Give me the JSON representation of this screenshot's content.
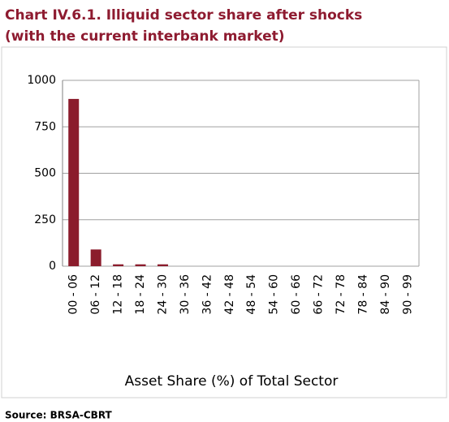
{
  "chart_data": {
    "type": "bar",
    "title": "Chart IV.6.1. Illiquid sector share after shocks",
    "subtitle": "(with the current interbank market)",
    "categories": [
      "00 - 06",
      "06 - 12",
      "12 - 18",
      "18 - 24",
      "24 - 30",
      "30 - 36",
      "36 - 42",
      "42 - 48",
      "48 - 54",
      "54 - 60",
      "60 - 66",
      "66 - 72",
      "72 - 78",
      "78 - 84",
      "84 - 90",
      "90 - 99"
    ],
    "values": [
      900,
      90,
      10,
      10,
      10,
      0,
      0,
      0,
      0,
      0,
      0,
      0,
      0,
      0,
      0,
      0
    ],
    "color": "#8b1c2c",
    "ylim": [
      0,
      1000
    ],
    "yticks": [
      0,
      250,
      500,
      750,
      1000
    ],
    "grid": true,
    "x_label": "Asset Share (%) of Total Sector",
    "source": "Source: BRSA-CBRT"
  }
}
